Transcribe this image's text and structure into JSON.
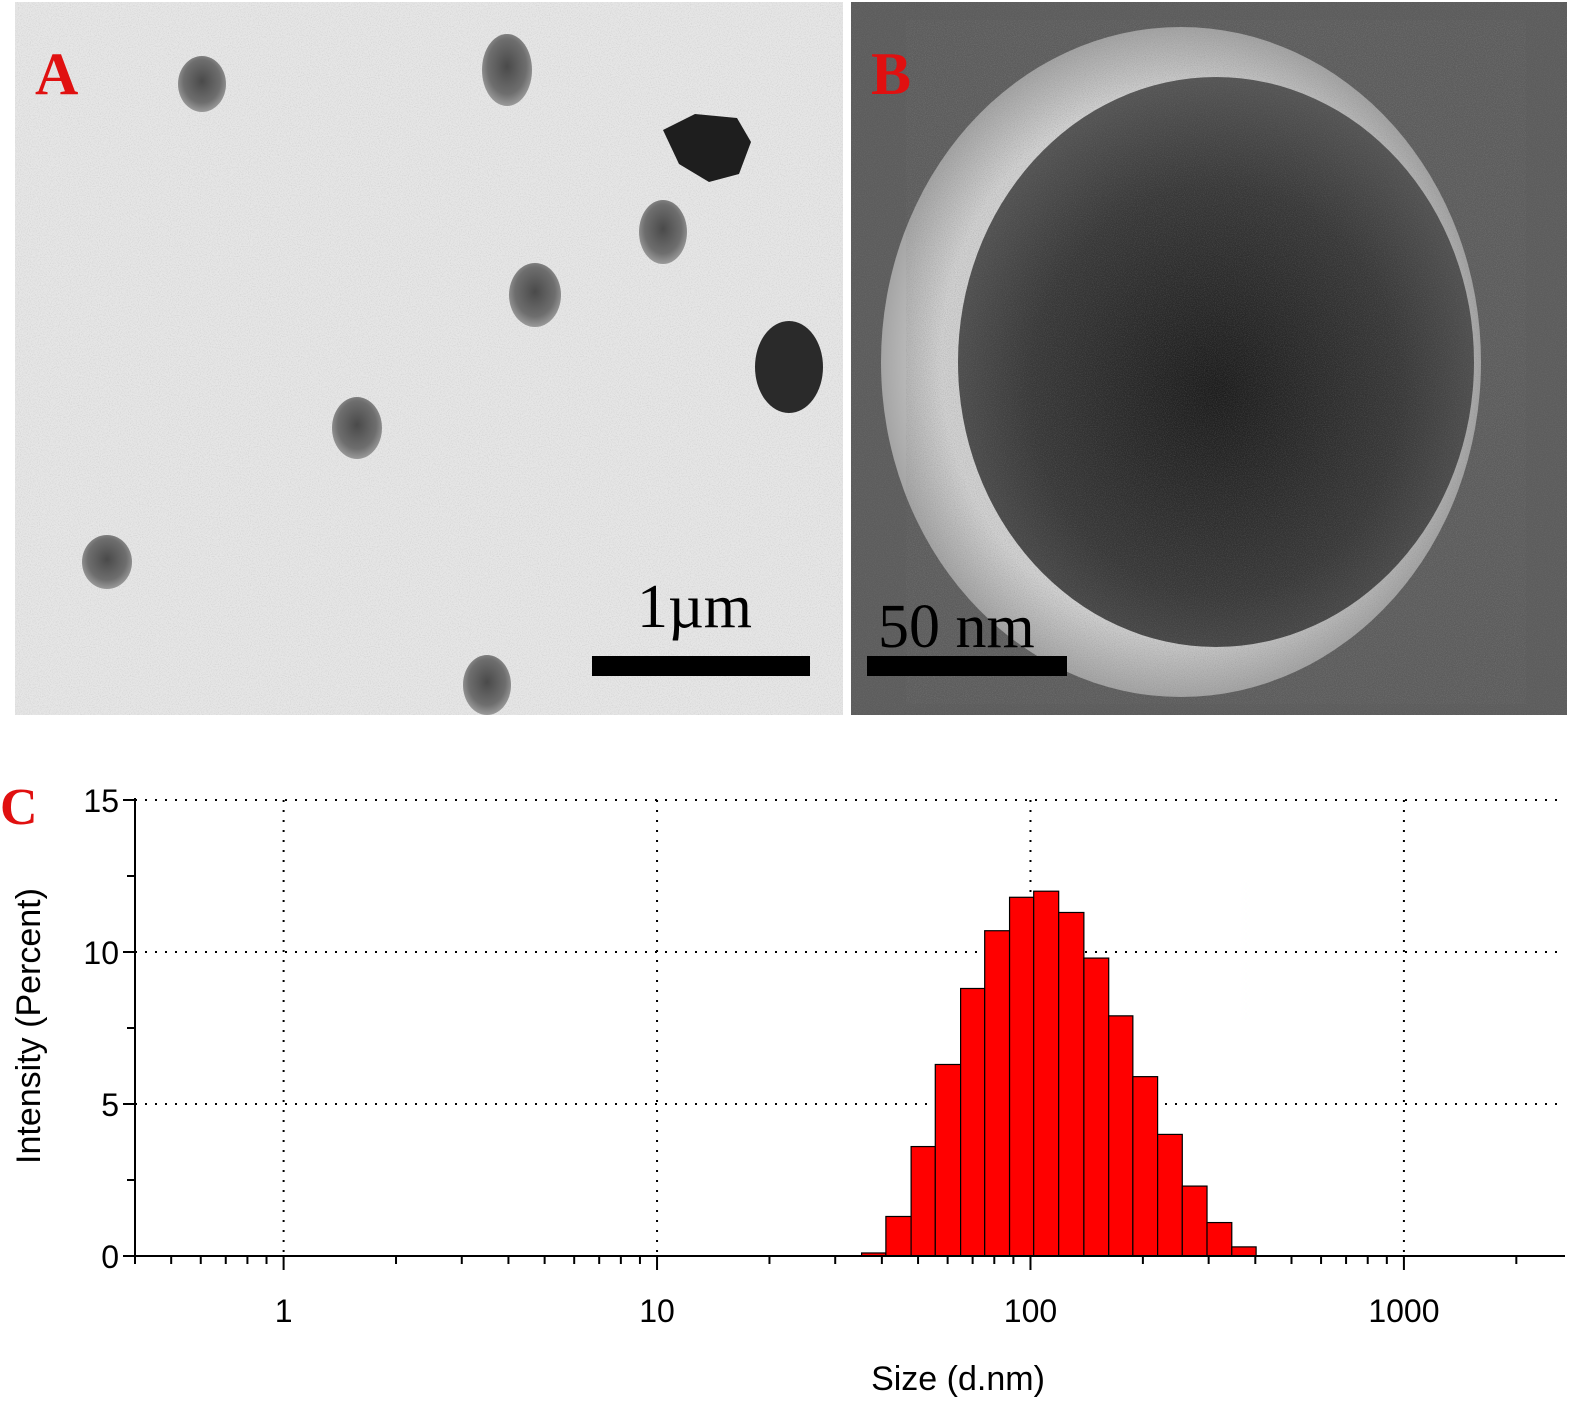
{
  "panels": {
    "a": {
      "label": "A",
      "scale_label": "1µm"
    },
    "b": {
      "label": "B",
      "scale_label": "50 nm"
    },
    "c": {
      "label": "C"
    }
  },
  "colors": {
    "panel_label": "#e01010",
    "bar_fill": "#ff0000",
    "bar_stroke": "#000000"
  },
  "chart_data": {
    "type": "bar",
    "x_scale": "log",
    "xlabel": "Size (d.nm)",
    "ylabel": "Intensity (Percent)",
    "xlim": [
      0.4,
      2700
    ],
    "ylim": [
      0,
      15
    ],
    "x_ticks": [
      1,
      10,
      100,
      1000
    ],
    "y_ticks": [
      0,
      5,
      10,
      15
    ],
    "grid": true,
    "bin_edges": [
      35.3,
      41.0,
      47.9,
      55.6,
      65.0,
      75.4,
      87.9,
      102.0,
      119.0,
      139.0,
      162.0,
      188.0,
      219.0,
      255.0,
      297.0,
      346.0,
      402.0
    ],
    "values": [
      0.1,
      1.3,
      3.6,
      6.3,
      8.8,
      10.7,
      11.8,
      12.0,
      11.3,
      9.8,
      7.9,
      5.9,
      4.0,
      2.3,
      1.1,
      0.3
    ]
  }
}
